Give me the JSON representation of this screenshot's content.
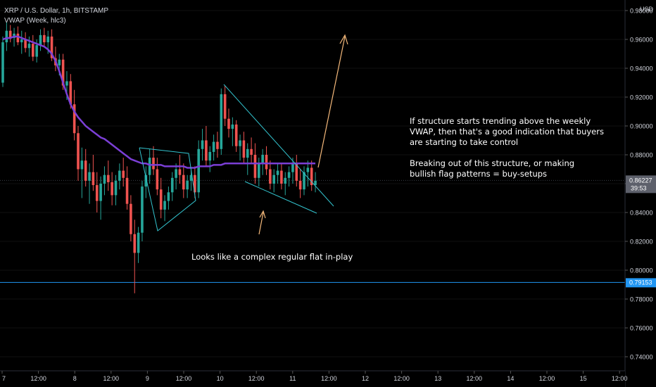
{
  "header": {
    "symbol_line": "XRP / U.S. Dollar, 1h, BITSTAMP",
    "indicator_line": "VWAP (Week, hlc3)"
  },
  "colors": {
    "background": "#000000",
    "up": "#26a69a",
    "down": "#ef5350",
    "vwap": "#7b3fd6",
    "pattern": "#33c4cf",
    "arrow": "#f5b97b",
    "support": "#2196f3",
    "axis_text": "#d1d4dc",
    "price_label_bg": "#5d606b",
    "support_label_bg": "#2196f3"
  },
  "annotations": {
    "note_main": "If structure starts trending above the weekly\nVWAP, then that's a good indication that buyers\nare starting to take control\n\nBreaking out of this structure, or making\nbullish flag patterns = buy-setups",
    "note_flat": "Looks like a complex regular flat in-play"
  },
  "price_axis": {
    "currency": "USD",
    "current_price": "0.86227",
    "countdown": "39:53",
    "support_price": "0.79153"
  },
  "chart_data": {
    "type": "candlestick",
    "x_axis_labels": [
      "7",
      "12:00",
      "8",
      "12:00",
      "9",
      "12:00",
      "10",
      "12:00",
      "11",
      "12:00",
      "12",
      "12:00",
      "13",
      "12:00",
      "14",
      "12:00",
      "15",
      "12:00"
    ],
    "y_axis": {
      "ylim": [
        0.73,
        0.975
      ],
      "ticks": [
        "0.74000",
        "0.76000",
        "0.78000",
        "0.80000",
        "0.82000",
        "0.84000",
        "0.86000",
        "0.88000",
        "0.90000",
        "0.92000",
        "0.94000",
        "0.96000",
        "0.98000"
      ]
    },
    "current_price": 0.86227,
    "support_level": 0.79153,
    "ohlc": [
      [
        0.93,
        0.962,
        0.927,
        0.958
      ],
      [
        0.958,
        0.972,
        0.952,
        0.966
      ],
      [
        0.966,
        0.97,
        0.958,
        0.961
      ],
      [
        0.961,
        0.968,
        0.955,
        0.964
      ],
      [
        0.964,
        0.969,
        0.956,
        0.958
      ],
      [
        0.958,
        0.966,
        0.95,
        0.96
      ],
      [
        0.96,
        0.965,
        0.951,
        0.954
      ],
      [
        0.954,
        0.962,
        0.948,
        0.957
      ],
      [
        0.957,
        0.963,
        0.945,
        0.948
      ],
      [
        0.948,
        0.96,
        0.944,
        0.956
      ],
      [
        0.956,
        0.967,
        0.952,
        0.963
      ],
      [
        0.963,
        0.968,
        0.955,
        0.958
      ],
      [
        0.958,
        0.966,
        0.95,
        0.962
      ],
      [
        0.962,
        0.967,
        0.945,
        0.947
      ],
      [
        0.947,
        0.955,
        0.938,
        0.942
      ],
      [
        0.942,
        0.95,
        0.935,
        0.946
      ],
      [
        0.946,
        0.95,
        0.925,
        0.928
      ],
      [
        0.928,
        0.938,
        0.918,
        0.931
      ],
      [
        0.931,
        0.936,
        0.912,
        0.915
      ],
      [
        0.915,
        0.925,
        0.89,
        0.895
      ],
      [
        0.895,
        0.9,
        0.862,
        0.87
      ],
      [
        0.87,
        0.885,
        0.85,
        0.876
      ],
      [
        0.876,
        0.884,
        0.858,
        0.862
      ],
      [
        0.862,
        0.874,
        0.846,
        0.868
      ],
      [
        0.868,
        0.88,
        0.855,
        0.859
      ],
      [
        0.859,
        0.868,
        0.84,
        0.848
      ],
      [
        0.848,
        0.865,
        0.835,
        0.86
      ],
      [
        0.86,
        0.872,
        0.852,
        0.866
      ],
      [
        0.866,
        0.876,
        0.855,
        0.861
      ],
      [
        0.861,
        0.868,
        0.845,
        0.852
      ],
      [
        0.852,
        0.866,
        0.845,
        0.862
      ],
      [
        0.862,
        0.874,
        0.856,
        0.869
      ],
      [
        0.869,
        0.878,
        0.858,
        0.864
      ],
      [
        0.864,
        0.872,
        0.842,
        0.846
      ],
      [
        0.846,
        0.852,
        0.82,
        0.825
      ],
      [
        0.825,
        0.835,
        0.784,
        0.812
      ],
      [
        0.812,
        0.83,
        0.805,
        0.826
      ],
      [
        0.826,
        0.862,
        0.82,
        0.858
      ],
      [
        0.858,
        0.872,
        0.85,
        0.866
      ],
      [
        0.866,
        0.884,
        0.86,
        0.878
      ],
      [
        0.878,
        0.886,
        0.866,
        0.87
      ],
      [
        0.87,
        0.878,
        0.852,
        0.856
      ],
      [
        0.856,
        0.864,
        0.836,
        0.842
      ],
      [
        0.842,
        0.852,
        0.834,
        0.848
      ],
      [
        0.848,
        0.858,
        0.842,
        0.854
      ],
      [
        0.854,
        0.868,
        0.848,
        0.864
      ],
      [
        0.864,
        0.874,
        0.856,
        0.87
      ],
      [
        0.87,
        0.88,
        0.86,
        0.866
      ],
      [
        0.866,
        0.874,
        0.85,
        0.856
      ],
      [
        0.856,
        0.866,
        0.85,
        0.862
      ],
      [
        0.862,
        0.87,
        0.855,
        0.866
      ],
      [
        0.866,
        0.872,
        0.85,
        0.854
      ],
      [
        0.854,
        0.89,
        0.85,
        0.884
      ],
      [
        0.884,
        0.898,
        0.876,
        0.89
      ],
      [
        0.89,
        0.9,
        0.872,
        0.876
      ],
      [
        0.876,
        0.886,
        0.868,
        0.882
      ],
      [
        0.882,
        0.894,
        0.876,
        0.889
      ],
      [
        0.889,
        0.896,
        0.878,
        0.884
      ],
      [
        0.884,
        0.926,
        0.88,
        0.922
      ],
      [
        0.922,
        0.928,
        0.9,
        0.905
      ],
      [
        0.905,
        0.912,
        0.892,
        0.898
      ],
      [
        0.898,
        0.906,
        0.886,
        0.901
      ],
      [
        0.901,
        0.904,
        0.882,
        0.886
      ],
      [
        0.886,
        0.894,
        0.876,
        0.89
      ],
      [
        0.89,
        0.896,
        0.874,
        0.878
      ],
      [
        0.878,
        0.888,
        0.866,
        0.884
      ],
      [
        0.884,
        0.892,
        0.874,
        0.88
      ],
      [
        0.88,
        0.888,
        0.86,
        0.864
      ],
      [
        0.864,
        0.878,
        0.858,
        0.874
      ],
      [
        0.874,
        0.884,
        0.866,
        0.88
      ],
      [
        0.88,
        0.886,
        0.866,
        0.87
      ],
      [
        0.87,
        0.876,
        0.856,
        0.86
      ],
      [
        0.86,
        0.87,
        0.854,
        0.866
      ],
      [
        0.866,
        0.874,
        0.86,
        0.869
      ],
      [
        0.869,
        0.874,
        0.856,
        0.86
      ],
      [
        0.86,
        0.868,
        0.852,
        0.864
      ],
      [
        0.864,
        0.872,
        0.858,
        0.868
      ],
      [
        0.868,
        0.878,
        0.86,
        0.874
      ],
      [
        0.874,
        0.88,
        0.858,
        0.862
      ],
      [
        0.862,
        0.87,
        0.85,
        0.856
      ],
      [
        0.856,
        0.872,
        0.852,
        0.868
      ],
      [
        0.868,
        0.876,
        0.858,
        0.871
      ],
      [
        0.871,
        0.876,
        0.855,
        0.859
      ],
      [
        0.859,
        0.868,
        0.854,
        0.862
      ]
    ],
    "vwap": [
      0.96,
      0.961,
      0.961,
      0.962,
      0.962,
      0.961,
      0.96,
      0.959,
      0.958,
      0.957,
      0.956,
      0.955,
      0.953,
      0.95,
      0.945,
      0.938,
      0.93,
      0.922,
      0.915,
      0.91,
      0.906,
      0.903,
      0.9,
      0.898,
      0.896,
      0.894,
      0.892,
      0.891,
      0.889,
      0.887,
      0.885,
      0.883,
      0.881,
      0.879,
      0.877,
      0.876,
      0.875,
      0.874,
      0.874,
      0.873,
      0.873,
      0.873,
      0.873,
      0.872,
      0.872,
      0.872,
      0.872,
      0.872,
      0.872,
      0.871,
      0.871,
      0.871,
      0.872,
      0.872,
      0.872,
      0.872,
      0.873,
      0.873,
      0.873,
      0.874,
      0.874,
      0.874,
      0.874,
      0.874,
      0.874,
      0.874,
      0.874,
      0.874,
      0.874,
      0.874,
      0.874,
      0.874,
      0.874,
      0.874,
      0.874,
      0.874,
      0.874,
      0.874,
      0.874,
      0.874,
      0.874,
      0.874,
      0.874,
      0.874
    ]
  }
}
